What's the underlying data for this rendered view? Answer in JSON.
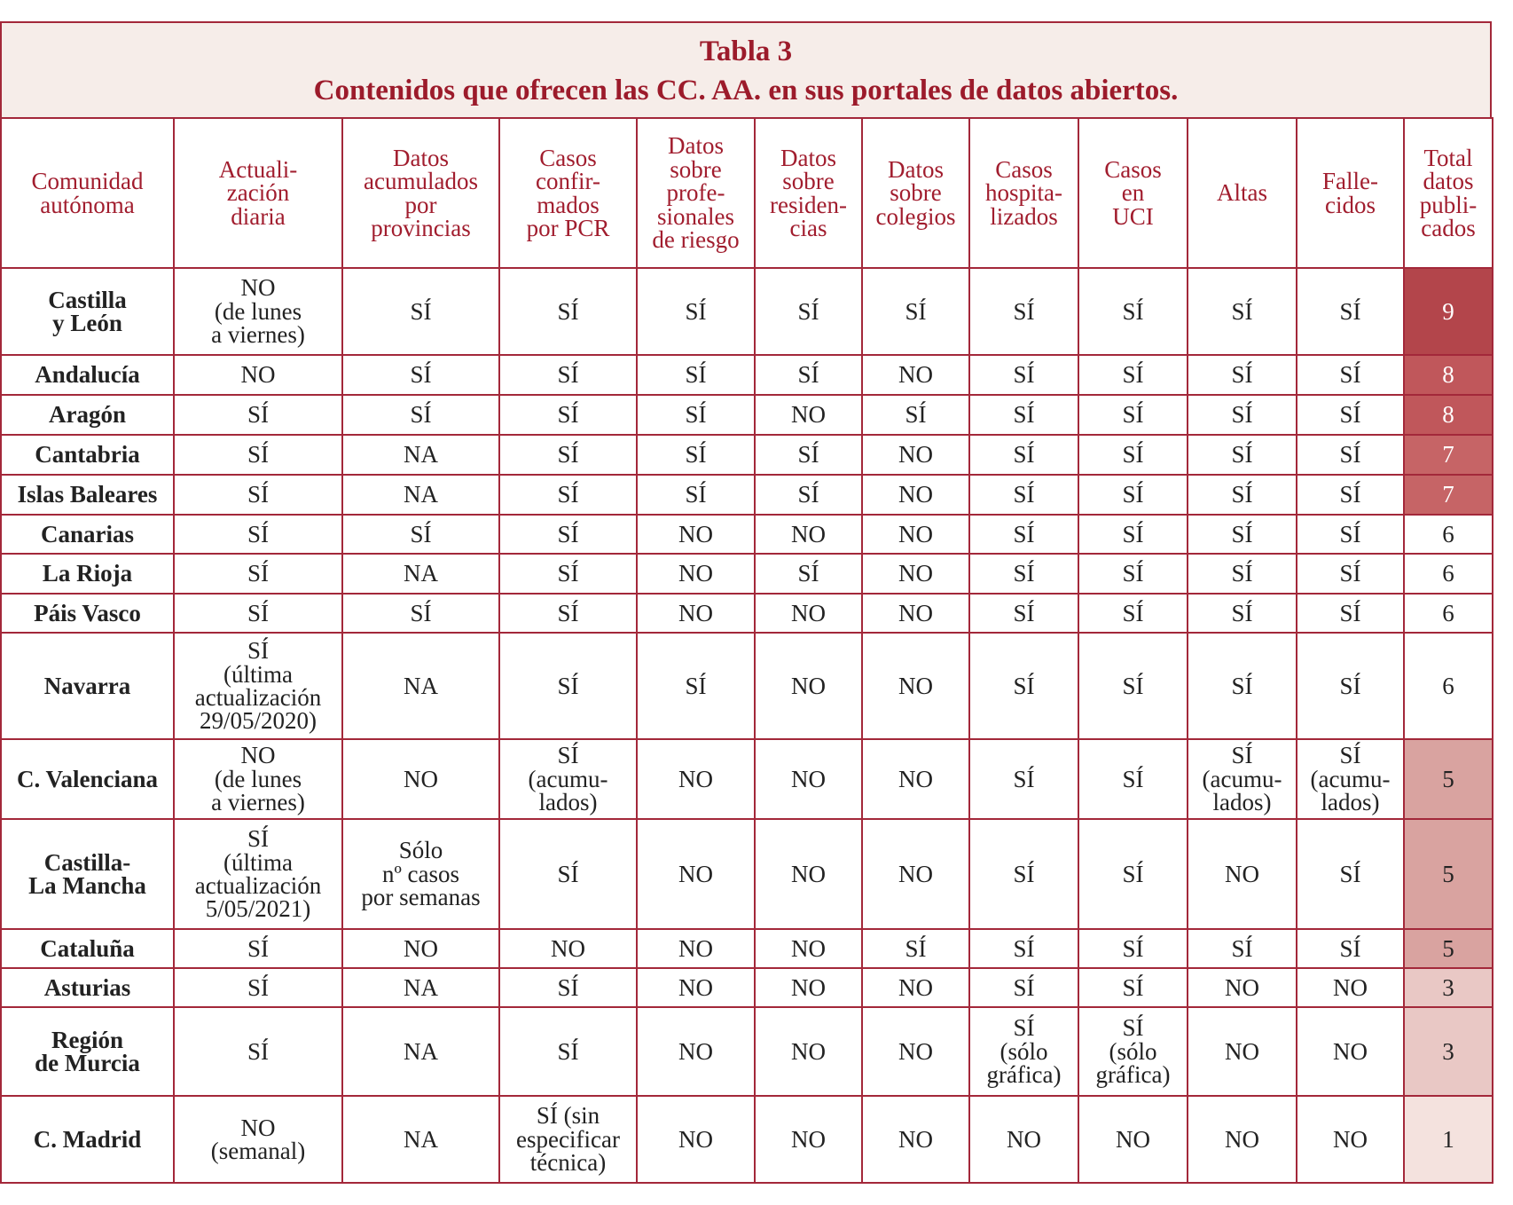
{
  "header": {
    "title": "Tabla 3",
    "subtitle": "Contenidos que ofrecen las CC. AA. en sus portales de datos abiertos."
  },
  "table": {
    "columns": [
      "Comunidad\nautónoma",
      "Actuali-\nzación\ndiaria",
      "Datos\nacumulados\npor\nprovincias",
      "Casos\nconfir-\nmados\npor PCR",
      "Datos\nsobre\nprofe-\nsionales\nde riesgo",
      "Datos\nsobre\nresiden-\ncias",
      "Datos\nsobre\ncolegios",
      "Casos\nhospita-\nlizados",
      "Casos\nen\nUCI",
      "Altas",
      "Falle-\ncidos",
      "Total\ndatos\npubli-\ncados"
    ],
    "rows": [
      [
        "Castilla\ny León",
        "NO\n(de lunes\na viernes)",
        "SÍ",
        "SÍ",
        "SÍ",
        "SÍ",
        "SÍ",
        "SÍ",
        "SÍ",
        "SÍ",
        "SÍ",
        9
      ],
      [
        "Andalucía",
        "NO",
        "SÍ",
        "SÍ",
        "SÍ",
        "SÍ",
        "NO",
        "SÍ",
        "SÍ",
        "SÍ",
        "SÍ",
        8
      ],
      [
        "Aragón",
        "SÍ",
        "SÍ",
        "SÍ",
        "SÍ",
        "NO",
        "SÍ",
        "SÍ",
        "SÍ",
        "SÍ",
        "SÍ",
        8
      ],
      [
        "Cantabria",
        "SÍ",
        "NA",
        "SÍ",
        "SÍ",
        "SÍ",
        "NO",
        "SÍ",
        "SÍ",
        "SÍ",
        "SÍ",
        7
      ],
      [
        "Islas Baleares",
        "SÍ",
        "NA",
        "SÍ",
        "SÍ",
        "SÍ",
        "NO",
        "SÍ",
        "SÍ",
        "SÍ",
        "SÍ",
        7
      ],
      [
        "Canarias",
        "SÍ",
        "SÍ",
        "SÍ",
        "NO",
        "NO",
        "NO",
        "SÍ",
        "SÍ",
        "SÍ",
        "SÍ",
        6
      ],
      [
        "La Rioja",
        "SÍ",
        "NA",
        "SÍ",
        "NO",
        "SÍ",
        "NO",
        "SÍ",
        "SÍ",
        "SÍ",
        "SÍ",
        6
      ],
      [
        "Páis Vasco",
        "SÍ",
        "SÍ",
        "SÍ",
        "NO",
        "NO",
        "NO",
        "SÍ",
        "SÍ",
        "SÍ",
        "SÍ",
        6
      ],
      [
        "Navarra",
        "SÍ\n(última\nactualización\n29/05/2020)",
        "NA",
        "SÍ",
        "SÍ",
        "NO",
        "NO",
        "SÍ",
        "SÍ",
        "SÍ",
        "SÍ",
        6
      ],
      [
        "C. Valenciana",
        "NO\n(de lunes\na viernes)",
        "NO",
        "SÍ\n(acumu-\nlados)",
        "NO",
        "NO",
        "NO",
        "SÍ",
        "SÍ",
        "SÍ\n(acumu-\nlados)",
        "SÍ\n(acumu-\nlados)",
        5
      ],
      [
        "Castilla-\nLa Mancha",
        "SÍ\n(última\nactualización\n5/05/2021)",
        "Sólo\nnº casos\npor semanas",
        "SÍ",
        "NO",
        "NO",
        "NO",
        "SÍ",
        "SÍ",
        "NO",
        "SÍ",
        5
      ],
      [
        "Cataluña",
        "SÍ",
        "NO",
        "NO",
        "NO",
        "NO",
        "SÍ",
        "SÍ",
        "SÍ",
        "SÍ",
        "SÍ",
        5
      ],
      [
        "Asturias",
        "SÍ",
        "NA",
        "SÍ",
        "NO",
        "NO",
        "NO",
        "SÍ",
        "SÍ",
        "NO",
        "NO",
        3
      ],
      [
        "Región\nde Murcia",
        "SÍ",
        "NA",
        "SÍ",
        "NO",
        "NO",
        "NO",
        "SÍ\n(sólo\ngráfica)",
        "SÍ\n(sólo\ngráfica)",
        "NO",
        "NO",
        3
      ],
      [
        "C. Madrid",
        "NO\n(semanal)",
        "NA",
        "SÍ (sin\nespecificar\ntécnica)",
        "NO",
        "NO",
        "NO",
        "NO",
        "NO",
        "NO",
        "NO",
        1
      ]
    ]
  }
}
